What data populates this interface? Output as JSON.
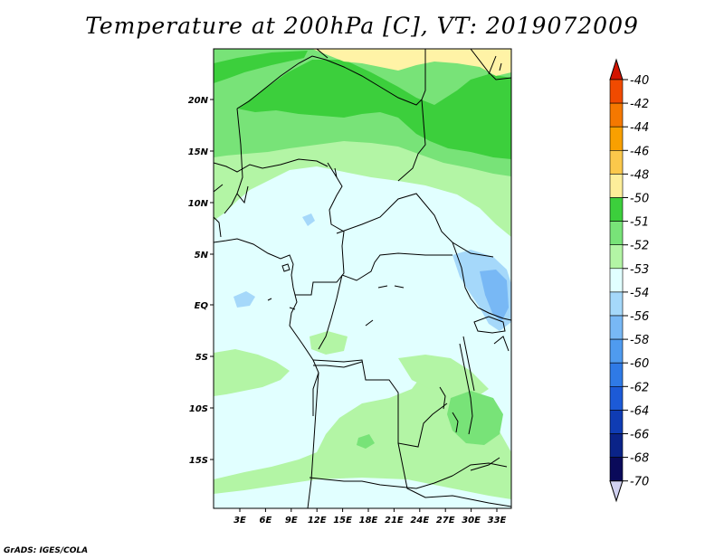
{
  "title": "Temperature at 200hPa [C], VT: 2019072009",
  "credit": "GrADS: IGES/COLA",
  "map": {
    "lat_ticks": [
      "20N",
      "15N",
      "10N",
      "5N",
      "EQ",
      "5S",
      "10S",
      "15S"
    ],
    "lon_ticks": [
      "3E",
      "6E",
      "9E",
      "12E",
      "15E",
      "18E",
      "21E",
      "24E",
      "27E",
      "30E",
      "33E"
    ],
    "colors": {
      "band_minus50": "#fff3a6",
      "band_minus51": "#3ccf3c",
      "band_minus52": "#78e378",
      "band_minus53": "#b3f5a5",
      "band_minus54": "#e1ffff",
      "band_minus56": "#a5d8fa",
      "band_minus58": "#78b8f5",
      "coastline": "#000000"
    }
  },
  "colorbar": {
    "labels": [
      "-40",
      "-42",
      "-44",
      "-46",
      "-48",
      "-50",
      "-51",
      "-52",
      "-53",
      "-54",
      "-56",
      "-58",
      "-60",
      "-62",
      "-64",
      "-66",
      "-68",
      "-70"
    ],
    "colors": [
      "#e61e00",
      "#f04a00",
      "#f57800",
      "#f9a000",
      "#fbc84b",
      "#fdee9a",
      "#3ccf3c",
      "#78e378",
      "#b3f5a5",
      "#e1ffff",
      "#a5d8fa",
      "#78b8f5",
      "#4f9bef",
      "#2f7ae6",
      "#1c5ad7",
      "#0f3cb4",
      "#0a2388",
      "#0a0a5a"
    ],
    "top_arrow_color": "#d21400",
    "bottom_arrow_color": "#d0d0f0"
  }
}
